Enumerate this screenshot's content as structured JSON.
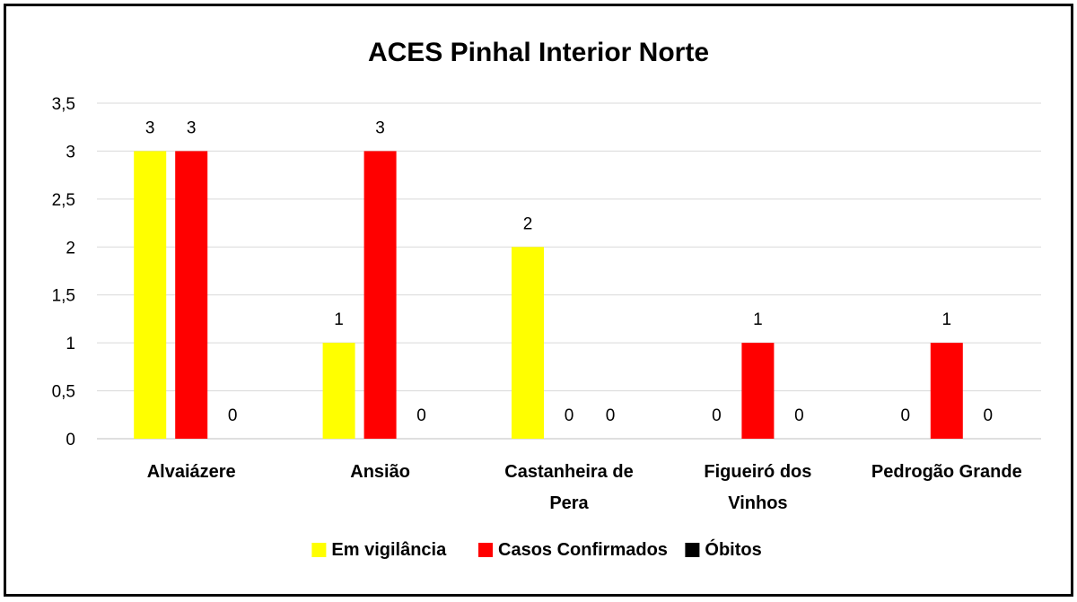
{
  "chart_data": {
    "type": "bar",
    "title": "ACES Pinhal Interior Norte",
    "categories": [
      [
        "Alvaiázere"
      ],
      [
        "Ansião"
      ],
      [
        "Castanheira de",
        "Pera"
      ],
      [
        "Figueiró dos",
        "Vinhos"
      ],
      [
        "Pedrogão Grande"
      ]
    ],
    "series": [
      {
        "name": "Em vigilância",
        "color": "#FFFF00",
        "values": [
          3,
          1,
          2,
          0,
          0
        ]
      },
      {
        "name": "Casos Confirmados",
        "color": "#FF0000",
        "values": [
          3,
          3,
          0,
          1,
          1
        ]
      },
      {
        "name": "Óbitos",
        "color": "#000000",
        "values": [
          0,
          0,
          0,
          0,
          0
        ]
      }
    ],
    "ylim": [
      0,
      3.5
    ],
    "yticks": [
      "0",
      "0,5",
      "1",
      "1,5",
      "2",
      "2,5",
      "3",
      "3,5"
    ],
    "grid": true,
    "legend": "bottom",
    "xlabel": "",
    "ylabel": ""
  }
}
